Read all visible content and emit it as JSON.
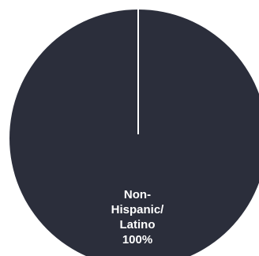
{
  "chart_data": {
    "type": "pie",
    "slices": [
      {
        "label_lines": [
          "Non-",
          "Hispanic/",
          "Latino"
        ],
        "value": 100,
        "value_label": "100%",
        "color": "#2b2e3b"
      }
    ],
    "separator_color": "#ffffff",
    "background": "#ffffff"
  }
}
